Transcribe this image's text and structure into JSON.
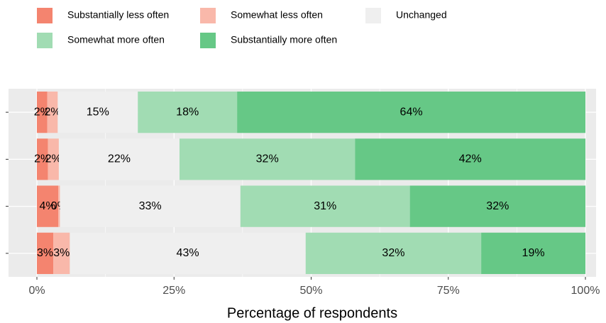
{
  "chart_data": {
    "type": "stacked_bar_horizontal",
    "categories": [
      null,
      null,
      null,
      null
    ],
    "series": [
      {
        "name": "Substantially less often",
        "color": "#f4846f",
        "values": [
          1.9,
          2,
          3.9,
          3
        ],
        "value_labels": [
          "2%",
          "2%",
          "4%",
          "3%"
        ]
      },
      {
        "name": "Somewhat less often",
        "color": "#f9b8aa",
        "values": [
          1.9,
          2,
          0.3,
          3
        ],
        "value_labels": [
          "2%",
          "2%",
          "0%",
          "3%"
        ]
      },
      {
        "name": "Unchanged",
        "color": "#efefef",
        "values": [
          14.6,
          22,
          32.9,
          43
        ],
        "value_labels": [
          "15%",
          "22%",
          "33%",
          "43%"
        ]
      },
      {
        "name": "Somewhat more often",
        "color": "#a1dcb3",
        "values": [
          18.1,
          32,
          30.9,
          32
        ],
        "value_labels": [
          "18%",
          "32%",
          "31%",
          "32%"
        ]
      },
      {
        "name": "Substantially more often",
        "color": "#66c886",
        "values": [
          63.5,
          42,
          32,
          19
        ],
        "value_labels": [
          "64%",
          "42%",
          "32%",
          "19%"
        ]
      }
    ],
    "xlabel": "Percentage of respondents",
    "xlim": [
      0,
      100
    ],
    "xticks": [
      {
        "value": 0,
        "label": "0%"
      },
      {
        "value": 25,
        "label": "25%"
      },
      {
        "value": 50,
        "label": "50%"
      },
      {
        "value": 75,
        "label": "75%"
      },
      {
        "value": 100,
        "label": "100%"
      }
    ],
    "grid": true,
    "legend": "top"
  }
}
